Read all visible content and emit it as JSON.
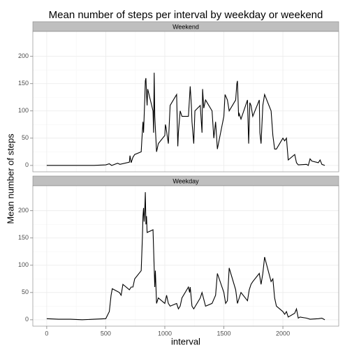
{
  "title": "Mean number of steps per interval by weekday or weekend",
  "x_label": "interval",
  "y_label": "Mean number of steps",
  "chart_data": [
    {
      "type": "line",
      "title": "Weekend",
      "color": "#000000",
      "grid": true,
      "xlim": [
        -117.75,
        2472.75
      ],
      "ylim": [
        -11.7,
        245.7
      ],
      "xticks": [
        0,
        500,
        1000,
        1500,
        2000
      ],
      "yticks": [
        0,
        50,
        100,
        150,
        200
      ],
      "x": [
        0,
        100,
        200,
        300,
        400,
        500,
        530,
        550,
        600,
        620,
        700,
        705,
        715,
        730,
        745,
        800,
        805,
        815,
        820,
        830,
        835,
        840,
        845,
        850,
        855,
        900,
        905,
        910,
        915,
        930,
        945,
        1000,
        1005,
        1010,
        1030,
        1045,
        1100,
        1110,
        1115,
        1130,
        1145,
        1200,
        1215,
        1225,
        1230,
        1245,
        1255,
        1300,
        1315,
        1320,
        1330,
        1345,
        1400,
        1415,
        1430,
        1445,
        1500,
        1510,
        1530,
        1545,
        1600,
        1610,
        1615,
        1625,
        1630,
        1645,
        1700,
        1710,
        1720,
        1730,
        1745,
        1800,
        1805,
        1815,
        1830,
        1845,
        1900,
        1915,
        1930,
        1945,
        2000,
        2015,
        2030,
        2045,
        2100,
        2115,
        2130,
        2200,
        2215,
        2230,
        2245,
        2300,
        2315,
        2330,
        2355
      ],
      "values": [
        0,
        0,
        0,
        0,
        0,
        1,
        3,
        0,
        4,
        2,
        6,
        18,
        5,
        15,
        20,
        25,
        45,
        80,
        60,
        120,
        155,
        160,
        130,
        110,
        140,
        100,
        60,
        170,
        90,
        25,
        40,
        55,
        75,
        70,
        40,
        110,
        130,
        35,
        60,
        100,
        90,
        90,
        145,
        110,
        80,
        40,
        100,
        110,
        60,
        140,
        105,
        120,
        100,
        50,
        80,
        30,
        90,
        130,
        120,
        100,
        120,
        150,
        155,
        90,
        95,
        85,
        120,
        40,
        115,
        110,
        90,
        120,
        60,
        40,
        110,
        130,
        100,
        55,
        30,
        30,
        50,
        45,
        50,
        10,
        20,
        5,
        1,
        2,
        0,
        12,
        8,
        5,
        10,
        2,
        0
      ]
    },
    {
      "type": "line",
      "title": "Weekday",
      "color": "#000000",
      "grid": true,
      "xlim": [
        -117.75,
        2472.75
      ],
      "ylim": [
        -11.7,
        245.7
      ],
      "xticks": [
        0,
        500,
        1000,
        1500,
        2000
      ],
      "yticks": [
        0,
        50,
        100,
        150,
        200
      ],
      "x": [
        0,
        100,
        200,
        300,
        400,
        500,
        530,
        545,
        555,
        615,
        630,
        645,
        700,
        715,
        730,
        745,
        800,
        810,
        815,
        820,
        825,
        830,
        835,
        840,
        845,
        850,
        900,
        905,
        915,
        920,
        930,
        945,
        1000,
        1015,
        1030,
        1045,
        1100,
        1115,
        1130,
        1145,
        1200,
        1210,
        1215,
        1230,
        1245,
        1300,
        1315,
        1345,
        1400,
        1430,
        1445,
        1500,
        1515,
        1530,
        1545,
        1600,
        1615,
        1630,
        1645,
        1700,
        1715,
        1730,
        1745,
        1800,
        1815,
        1830,
        1845,
        1900,
        1915,
        1930,
        1945,
        2000,
        2015,
        2030,
        2045,
        2100,
        2115,
        2130,
        2145,
        2200,
        2230,
        2300,
        2330,
        2355
      ],
      "values": [
        2,
        1,
        1,
        0,
        1,
        2,
        15,
        45,
        57,
        50,
        45,
        65,
        55,
        60,
        60,
        75,
        90,
        150,
        190,
        205,
        180,
        200,
        234,
        175,
        190,
        160,
        165,
        130,
        60,
        90,
        30,
        40,
        30,
        45,
        30,
        25,
        30,
        20,
        25,
        40,
        60,
        50,
        60,
        25,
        20,
        40,
        50,
        25,
        30,
        45,
        85,
        50,
        30,
        35,
        95,
        55,
        30,
        40,
        50,
        35,
        55,
        65,
        70,
        85,
        65,
        85,
        115,
        70,
        75,
        40,
        25,
        15,
        10,
        15,
        5,
        12,
        20,
        3,
        5,
        3,
        1,
        2,
        3,
        0
      ]
    }
  ]
}
